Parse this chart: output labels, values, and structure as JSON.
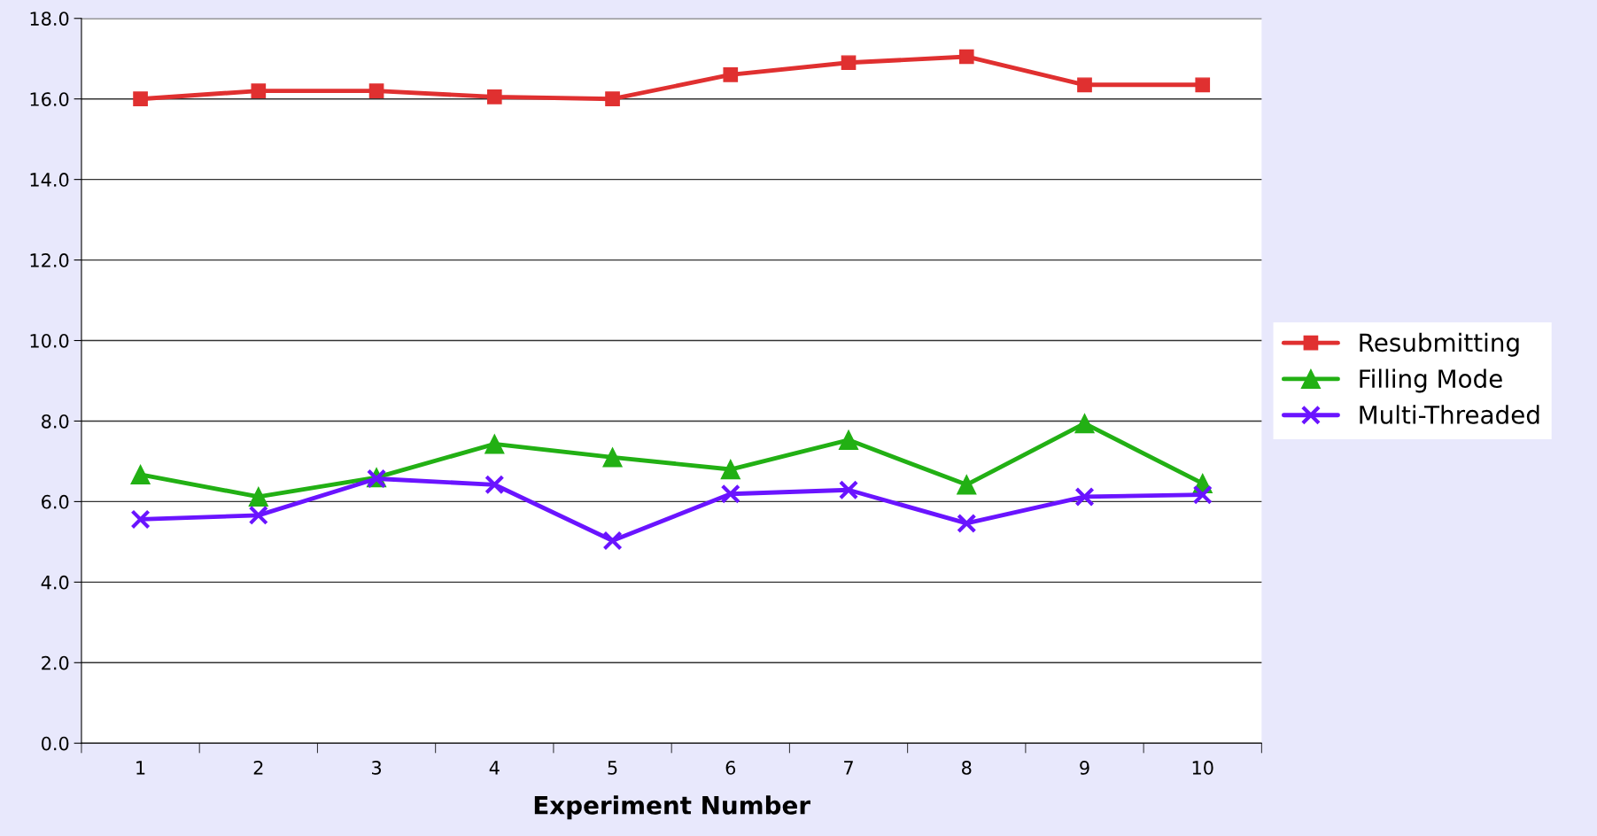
{
  "chart_data": {
    "type": "line",
    "xlabel": "Experiment Number",
    "categories": [
      "1",
      "2",
      "3",
      "4",
      "5",
      "6",
      "7",
      "8",
      "9",
      "10"
    ],
    "series": [
      {
        "name": "Resubmitting",
        "color": "#e03030",
        "marker": "square",
        "values": [
          16.0,
          16.2,
          16.2,
          16.05,
          16.0,
          16.6,
          16.9,
          17.05,
          16.35,
          16.35
        ]
      },
      {
        "name": "Filling Mode",
        "color": "#22b014",
        "marker": "triangle",
        "values": [
          6.67,
          6.12,
          6.6,
          7.43,
          7.1,
          6.8,
          7.53,
          6.42,
          7.94,
          6.45
        ]
      },
      {
        "name": "Multi-Threaded",
        "color": "#6a14ff",
        "marker": "cross",
        "values": [
          5.56,
          5.66,
          6.57,
          6.42,
          5.03,
          6.19,
          6.29,
          5.46,
          6.12,
          6.17
        ]
      }
    ],
    "ylim": [
      0,
      18
    ],
    "yticks": [
      {
        "value": 0,
        "label": "0.0"
      },
      {
        "value": 2,
        "label": "2.0"
      },
      {
        "value": 4,
        "label": "4.0"
      },
      {
        "value": 6,
        "label": "6.0"
      },
      {
        "value": 8,
        "label": "8.0"
      },
      {
        "value": 10,
        "label": "10.0"
      },
      {
        "value": 12,
        "label": "12.0"
      },
      {
        "value": 14,
        "label": "14.0"
      },
      {
        "value": 16,
        "label": "16.0"
      },
      {
        "value": 18,
        "label": "18.0"
      }
    ],
    "grid": "y",
    "legend": "right"
  }
}
